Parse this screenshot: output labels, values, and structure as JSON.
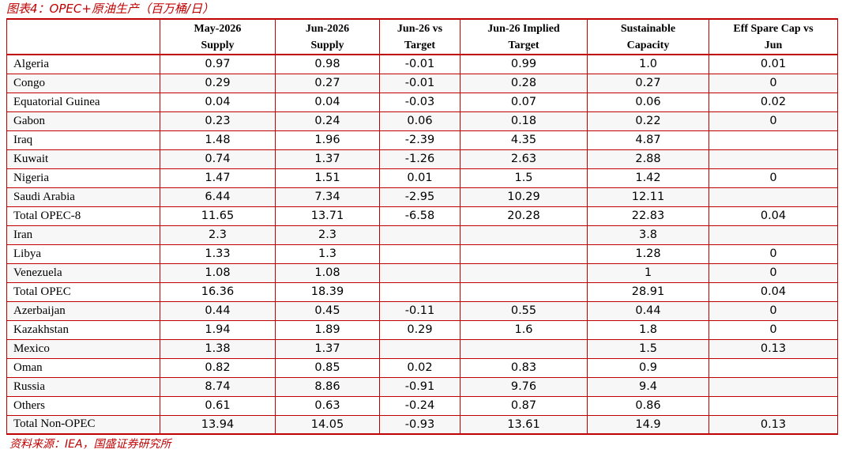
{
  "caption": "图表4：OPEC+原油生产（百万桶/日）",
  "source": "资料来源：IEA，国盛证券研究所",
  "headers": [
    {
      "l1": "",
      "l2": ""
    },
    {
      "l1": "May-2026",
      "l2": "Supply"
    },
    {
      "l1": "Jun-2026",
      "l2": "Supply"
    },
    {
      "l1": "Jun-26 vs",
      "l2": "Target"
    },
    {
      "l1": "Jun-26 Implied",
      "l2": "Target"
    },
    {
      "l1": "Sustainable",
      "l2": "Capacity"
    },
    {
      "l1": "Eff Spare Cap vs",
      "l2": "Jun"
    }
  ],
  "rows": [
    [
      "Algeria",
      "0.97",
      "0.98",
      "-0.01",
      "0.99",
      "1.0",
      "0.01"
    ],
    [
      "Congo",
      "0.29",
      "0.27",
      "-0.01",
      "0.28",
      "0.27",
      "0"
    ],
    [
      "Equatorial Guinea",
      "0.04",
      "0.04",
      "-0.03",
      "0.07",
      "0.06",
      "0.02"
    ],
    [
      "Gabon",
      "0.23",
      "0.24",
      "0.06",
      "0.18",
      "0.22",
      "0"
    ],
    [
      "Iraq",
      "1.48",
      "1.96",
      "-2.39",
      "4.35",
      "4.87",
      ""
    ],
    [
      "Kuwait",
      "0.74",
      "1.37",
      "-1.26",
      "2.63",
      "2.88",
      ""
    ],
    [
      "Nigeria",
      "1.47",
      "1.51",
      "0.01",
      "1.5",
      "1.42",
      "0"
    ],
    [
      "Saudi Arabia",
      "6.44",
      "7.34",
      "-2.95",
      "10.29",
      "12.11",
      ""
    ],
    [
      "Total OPEC-8",
      "11.65",
      "13.71",
      "-6.58",
      "20.28",
      "22.83",
      "0.04"
    ],
    [
      "Iran",
      "2.3",
      "2.3",
      "",
      "",
      "3.8",
      ""
    ],
    [
      "Libya",
      "1.33",
      "1.3",
      "",
      "",
      "1.28",
      "0"
    ],
    [
      "Venezuela",
      "1.08",
      "1.08",
      "",
      "",
      "1",
      "0"
    ],
    [
      "Total OPEC",
      "16.36",
      "18.39",
      "",
      "",
      "28.91",
      "0.04"
    ],
    [
      "Azerbaijan",
      "0.44",
      "0.45",
      "-0.11",
      "0.55",
      "0.44",
      "0"
    ],
    [
      "Kazakhstan",
      "1.94",
      "1.89",
      "0.29",
      "1.6",
      "1.8",
      "0"
    ],
    [
      "Mexico",
      "1.38",
      "1.37",
      "",
      "",
      "1.5",
      "0.13"
    ],
    [
      "Oman",
      "0.82",
      "0.85",
      "0.02",
      "0.83",
      "0.9",
      ""
    ],
    [
      "Russia",
      "8.74",
      "8.86",
      "-0.91",
      "9.76",
      "9.4",
      ""
    ],
    [
      "Others",
      "0.61",
      "0.63",
      "-0.24",
      "0.87",
      "0.86",
      ""
    ],
    [
      "Total Non-OPEC",
      "13.94",
      "14.05",
      "-0.93",
      "13.61",
      "14.9",
      "0.13"
    ]
  ]
}
